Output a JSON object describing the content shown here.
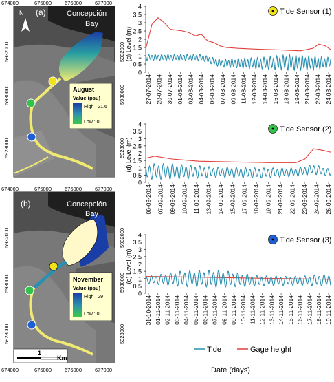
{
  "maps": [
    {
      "panel": "(a)",
      "place": "Concepción Bay",
      "legend_title": "August",
      "legend_value": "Value (psu)",
      "legend_high": "High : 21.6",
      "legend_low": "Low : 0",
      "x_ticks": [
        "674000",
        "675000",
        "676000",
        "677000"
      ],
      "y_ticks": [
        "5932000",
        "5930000",
        "5928000"
      ]
    },
    {
      "panel": "(b)",
      "place": "Concepción Bay",
      "legend_title": "November",
      "legend_value": "Value (psu)",
      "legend_high": "High : 29",
      "legend_low": "Low : 0",
      "x_ticks": [
        "674000",
        "675000",
        "676000",
        "677000"
      ],
      "y_ticks": [
        "5932000",
        "5930000",
        "5928000"
      ],
      "scale_label": "1",
      "scale_unit": "Km"
    }
  ],
  "compass": "N",
  "colors": {
    "tide": "#2a8fb0",
    "gage": "#e0403a",
    "sensor1": "#f2e21a",
    "sensor2": "#35c24a",
    "sensor3": "#1f5fd6",
    "river": "#f0ea72",
    "high": "#1a3ea8",
    "low": "#3cc84a"
  },
  "chart_data": [
    {
      "type": "line",
      "panel_label": "(c)",
      "ylabel": "Level (m)",
      "ylim": [
        0,
        4
      ],
      "yticks": [
        "0",
        "0.5",
        "1",
        "1.5",
        "2",
        "2.5",
        "3",
        "3.5",
        "4"
      ],
      "sensor_label": "Tide Sensor (1)",
      "sensor_color": "#f2e21a",
      "x_start": "2014-07-27",
      "x_end": "2014-08-26",
      "dates": [
        "27-07-2014",
        "28-07-2014",
        "30-07-2014",
        "01-08-2014",
        "02-08-2014",
        "04-08-2014",
        "06-08-2014",
        "07-08-2014",
        "09-08-2014",
        "11-08-2014",
        "12-08-2014",
        "14-08-2014",
        "16-08-2014",
        "18-08-2014",
        "19-08-2014",
        "21-08-2014",
        "22-08-2014",
        "24-08-2014"
      ],
      "series": [
        {
          "name": "Gage height",
          "color": "#e0403a",
          "points": [
            [
              "2014-07-27",
              1.4
            ],
            [
              "2014-07-28",
              2.9
            ],
            [
              "2014-07-29",
              3.3
            ],
            [
              "2014-07-30",
              3.0
            ],
            [
              "2014-07-31",
              2.6
            ],
            [
              "2014-08-02",
              2.5
            ],
            [
              "2014-08-03",
              2.4
            ],
            [
              "2014-08-04",
              2.2
            ],
            [
              "2014-08-05",
              2.3
            ],
            [
              "2014-08-06",
              1.9
            ],
            [
              "2014-08-07",
              1.8
            ],
            [
              "2014-08-08",
              1.6
            ],
            [
              "2014-08-09",
              1.5
            ],
            [
              "2014-08-11",
              1.45
            ],
            [
              "2014-08-14",
              1.4
            ],
            [
              "2014-08-18",
              1.35
            ],
            [
              "2014-08-21",
              1.3
            ],
            [
              "2014-08-23",
              1.45
            ],
            [
              "2014-08-24",
              1.7
            ],
            [
              "2014-08-25",
              1.6
            ],
            [
              "2014-08-26",
              1.35
            ]
          ]
        },
        {
          "name": "Tide",
          "color": "#2a8fb0",
          "osc": {
            "period_days": 0.517,
            "phase_days": 0.1,
            "env": [
              [
                "2014-07-27",
                0.9,
                0.15
              ],
              [
                "2014-08-05",
                0.9,
                0.15
              ],
              [
                "2014-08-08",
                0.55,
                0.2
              ],
              [
                "2014-08-15",
                0.55,
                0.3
              ],
              [
                "2014-08-19",
                0.6,
                0.4
              ],
              [
                "2014-08-23",
                0.55,
                0.35
              ],
              [
                "2014-08-26",
                0.6,
                0.25
              ]
            ]
          }
        }
      ]
    },
    {
      "type": "line",
      "panel_label": "(d)",
      "ylabel": "Level (m)",
      "ylim": [
        0,
        4
      ],
      "yticks": [
        "0",
        "0.5",
        "1",
        "1.5",
        "2",
        "2.5",
        "3",
        "3.5",
        "4"
      ],
      "sensor_label": "Tide Sensor (2)",
      "sensor_color": "#35c24a",
      "x_start": "2014-09-06",
      "x_end": "2014-09-27",
      "dates": [
        "06-09-2014",
        "07-09-2014",
        "09-09-2014",
        "10-09-2014",
        "11-09-2014",
        "13-09-2014",
        "14-09-2014",
        "15-09-2014",
        "17-09-2014",
        "18-09-2014",
        "19-09-2014",
        "21-09-2014",
        "22-09-2014",
        "23-09-2014",
        "24-09-2014",
        "26-09-2014"
      ],
      "series": [
        {
          "name": "Gage height",
          "color": "#e0403a",
          "points": [
            [
              "2014-09-06",
              1.65
            ],
            [
              "2014-09-07",
              1.8
            ],
            [
              "2014-09-09",
              1.6
            ],
            [
              "2014-09-12",
              1.45
            ],
            [
              "2014-09-16",
              1.4
            ],
            [
              "2014-09-20",
              1.35
            ],
            [
              "2014-09-23",
              1.35
            ],
            [
              "2014-09-24",
              1.6
            ],
            [
              "2014-09-25",
              2.3
            ],
            [
              "2014-09-26",
              2.2
            ],
            [
              "2014-09-27",
              2.05
            ]
          ]
        },
        {
          "name": "Tide",
          "color": "#2a8fb0",
          "osc": {
            "period_days": 0.517,
            "phase_days": 0.2,
            "env": [
              [
                "2014-09-06",
                0.75,
                0.45
              ],
              [
                "2014-09-09",
                0.75,
                0.45
              ],
              [
                "2014-09-14",
                0.7,
                0.3
              ],
              [
                "2014-09-19",
                0.65,
                0.3
              ],
              [
                "2014-09-23",
                0.7,
                0.25
              ],
              [
                "2014-09-25",
                0.9,
                0.3
              ],
              [
                "2014-09-27",
                0.65,
                0.2
              ]
            ]
          }
        }
      ]
    },
    {
      "type": "line",
      "panel_label": "(e)",
      "ylabel": "Level (m)",
      "ylim": [
        0,
        4
      ],
      "yticks": [
        "0",
        "0.5",
        "1",
        "1.5",
        "2",
        "2.5",
        "3",
        "3.5",
        "4"
      ],
      "sensor_label": "Tide Sensor (3)",
      "sensor_color": "#1f5fd6",
      "x_start": "2014-10-31",
      "x_end": "2014-11-20",
      "dates": [
        "31-10-2014",
        "01-11-2014",
        "02-11-2014",
        "03-11-2014",
        "04-11-2014",
        "05-11-2014",
        "06-11-2014",
        "07-11-2014",
        "08-11-2014",
        "09-11-2014",
        "10-11-2014",
        "11-11-2014",
        "12-11-2014",
        "13-11-2014",
        "14-11-2014",
        "15-11-2014",
        "16-11-2014",
        "17-11-2014",
        "18-11-2014",
        "19-11-2014"
      ],
      "series": [
        {
          "name": "Gage height",
          "color": "#e0403a",
          "points": [
            [
              "2014-10-31",
              1.15
            ],
            [
              "2014-11-05",
              1.1
            ],
            [
              "2014-11-10",
              1.05
            ],
            [
              "2014-11-15",
              1.0
            ],
            [
              "2014-11-20",
              0.95
            ]
          ]
        },
        {
          "name": "Tide",
          "color": "#2a8fb0",
          "osc": {
            "period_days": 0.517,
            "phase_days": 0.05,
            "env": [
              [
                "2014-10-31",
                0.9,
                0.2
              ],
              [
                "2014-11-04",
                1.0,
                0.45
              ],
              [
                "2014-11-08",
                1.0,
                0.5
              ],
              [
                "2014-11-12",
                0.85,
                0.3
              ],
              [
                "2014-11-16",
                0.85,
                0.25
              ],
              [
                "2014-11-20",
                0.9,
                0.35
              ]
            ]
          }
        }
      ]
    }
  ],
  "legend": {
    "tide": "Tide",
    "gage": "Gage height"
  },
  "xlabel": "Date (days)"
}
